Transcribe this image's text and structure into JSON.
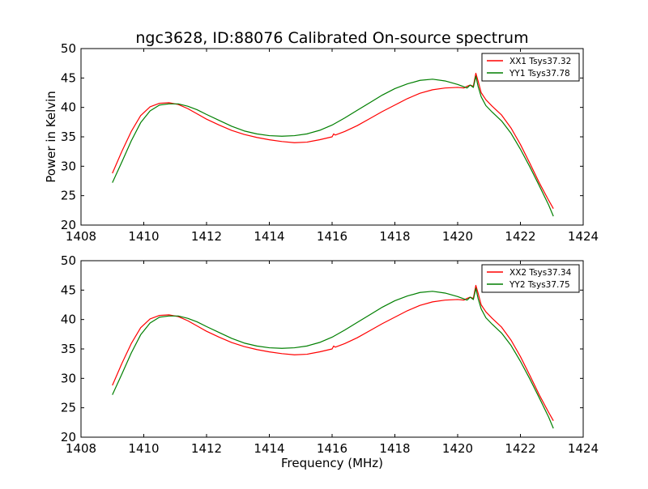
{
  "figure": {
    "title": "ngc3628, ID:88076 Calibrated On-source spectrum",
    "xlabel": "Frequency (MHz)",
    "ylabel": "Power in Kelvin"
  },
  "colors": {
    "xx": "#ff0000",
    "yy": "#007f00",
    "axes": "#000000"
  },
  "chart_data": [
    {
      "type": "line",
      "title": "ngc3628, ID:88076 Calibrated On-source spectrum",
      "xlabel": "",
      "ylabel": "Power in Kelvin",
      "xlim": [
        1408,
        1424
      ],
      "ylim": [
        20,
        50
      ],
      "xticks": [
        1408,
        1410,
        1412,
        1414,
        1416,
        1418,
        1420,
        1422,
        1424
      ],
      "yticks": [
        20,
        25,
        30,
        35,
        40,
        45,
        50
      ],
      "grid": false,
      "legend_position": "top-right",
      "series": [
        {
          "name": "XX1 Tsys37.32",
          "color": "#ff0000",
          "x": [
            1409.0,
            1409.3,
            1409.6,
            1409.9,
            1410.2,
            1410.5,
            1410.8,
            1411.1,
            1411.4,
            1411.7,
            1412.0,
            1412.4,
            1412.8,
            1413.2,
            1413.6,
            1414.0,
            1414.4,
            1414.8,
            1415.2,
            1415.6,
            1416.0,
            1416.05,
            1416.1,
            1416.4,
            1416.8,
            1417.2,
            1417.6,
            1418.0,
            1418.4,
            1418.8,
            1419.2,
            1419.6,
            1420.0,
            1420.2,
            1420.3,
            1420.4,
            1420.5,
            1420.58,
            1420.65,
            1420.75,
            1420.9,
            1421.1,
            1421.4,
            1421.7,
            1422.0,
            1422.3,
            1422.6,
            1422.9,
            1423.05
          ],
          "y": [
            28.8,
            32.5,
            35.9,
            38.6,
            40.1,
            40.7,
            40.8,
            40.5,
            39.8,
            38.9,
            38.0,
            37.0,
            36.1,
            35.4,
            34.9,
            34.5,
            34.2,
            34.0,
            34.1,
            34.5,
            35.0,
            35.5,
            35.3,
            35.9,
            36.9,
            38.1,
            39.3,
            40.4,
            41.5,
            42.4,
            43.0,
            43.3,
            43.4,
            43.3,
            43.6,
            43.8,
            43.6,
            45.8,
            44.5,
            42.5,
            41.3,
            40.2,
            38.7,
            36.5,
            33.7,
            30.5,
            27.2,
            24.2,
            22.8
          ]
        },
        {
          "name": "YY1 Tsys37.78",
          "color": "#007f00",
          "x": [
            1409.0,
            1409.3,
            1409.6,
            1409.9,
            1410.2,
            1410.5,
            1410.8,
            1411.1,
            1411.4,
            1411.7,
            1412.0,
            1412.4,
            1412.8,
            1413.2,
            1413.6,
            1414.0,
            1414.4,
            1414.8,
            1415.2,
            1415.6,
            1416.0,
            1416.4,
            1416.8,
            1417.2,
            1417.6,
            1418.0,
            1418.4,
            1418.8,
            1419.2,
            1419.6,
            1420.0,
            1420.2,
            1420.3,
            1420.4,
            1420.5,
            1420.58,
            1420.65,
            1420.75,
            1420.9,
            1421.1,
            1421.4,
            1421.7,
            1422.0,
            1422.3,
            1422.6,
            1422.9,
            1423.05
          ],
          "y": [
            27.2,
            30.7,
            34.3,
            37.4,
            39.4,
            40.4,
            40.6,
            40.6,
            40.2,
            39.6,
            38.8,
            37.8,
            36.8,
            36.0,
            35.5,
            35.2,
            35.1,
            35.2,
            35.5,
            36.1,
            37.0,
            38.2,
            39.5,
            40.8,
            42.1,
            43.2,
            44.0,
            44.6,
            44.8,
            44.5,
            43.9,
            43.5,
            43.3,
            43.8,
            43.4,
            45.3,
            43.6,
            41.8,
            40.3,
            39.2,
            37.7,
            35.6,
            32.9,
            29.9,
            26.7,
            23.4,
            21.5
          ]
        }
      ]
    },
    {
      "type": "line",
      "title": "",
      "xlabel": "Frequency (MHz)",
      "ylabel": "",
      "xlim": [
        1408,
        1424
      ],
      "ylim": [
        20,
        50
      ],
      "xticks": [
        1408,
        1410,
        1412,
        1414,
        1416,
        1418,
        1420,
        1422,
        1424
      ],
      "yticks": [
        20,
        25,
        30,
        35,
        40,
        45,
        50
      ],
      "grid": false,
      "legend_position": "top-right",
      "series": [
        {
          "name": "XX2 Tsys37.34",
          "color": "#ff0000",
          "x": [
            1409.0,
            1409.3,
            1409.6,
            1409.9,
            1410.2,
            1410.5,
            1410.8,
            1411.1,
            1411.4,
            1411.7,
            1412.0,
            1412.4,
            1412.8,
            1413.2,
            1413.6,
            1414.0,
            1414.4,
            1414.8,
            1415.2,
            1415.6,
            1416.0,
            1416.05,
            1416.1,
            1416.4,
            1416.8,
            1417.2,
            1417.6,
            1418.0,
            1418.4,
            1418.8,
            1419.2,
            1419.6,
            1420.0,
            1420.2,
            1420.3,
            1420.4,
            1420.5,
            1420.58,
            1420.65,
            1420.75,
            1420.9,
            1421.1,
            1421.4,
            1421.7,
            1422.0,
            1422.3,
            1422.6,
            1422.9,
            1423.05
          ],
          "y": [
            28.8,
            32.5,
            35.9,
            38.6,
            40.1,
            40.7,
            40.8,
            40.5,
            39.8,
            38.9,
            38.0,
            37.0,
            36.1,
            35.4,
            34.9,
            34.5,
            34.2,
            34.0,
            34.1,
            34.5,
            35.0,
            35.5,
            35.3,
            35.9,
            36.9,
            38.1,
            39.3,
            40.4,
            41.5,
            42.4,
            43.0,
            43.3,
            43.4,
            43.3,
            43.6,
            43.8,
            43.6,
            45.8,
            44.5,
            42.5,
            41.3,
            40.2,
            38.7,
            36.5,
            33.7,
            30.5,
            27.2,
            24.2,
            22.8
          ]
        },
        {
          "name": "YY2 Tsys37.75",
          "color": "#007f00",
          "x": [
            1409.0,
            1409.3,
            1409.6,
            1409.9,
            1410.2,
            1410.5,
            1410.8,
            1411.1,
            1411.4,
            1411.7,
            1412.0,
            1412.4,
            1412.8,
            1413.2,
            1413.6,
            1414.0,
            1414.4,
            1414.8,
            1415.2,
            1415.6,
            1416.0,
            1416.4,
            1416.8,
            1417.2,
            1417.6,
            1418.0,
            1418.4,
            1418.8,
            1419.2,
            1419.6,
            1420.0,
            1420.2,
            1420.3,
            1420.4,
            1420.5,
            1420.58,
            1420.65,
            1420.75,
            1420.9,
            1421.1,
            1421.4,
            1421.7,
            1422.0,
            1422.3,
            1422.6,
            1422.9,
            1423.05
          ],
          "y": [
            27.2,
            30.7,
            34.3,
            37.4,
            39.4,
            40.4,
            40.6,
            40.6,
            40.2,
            39.6,
            38.8,
            37.8,
            36.8,
            36.0,
            35.5,
            35.2,
            35.1,
            35.2,
            35.5,
            36.1,
            37.0,
            38.2,
            39.5,
            40.8,
            42.1,
            43.2,
            44.0,
            44.6,
            44.8,
            44.5,
            43.9,
            43.5,
            43.3,
            43.8,
            43.4,
            45.3,
            43.6,
            41.8,
            40.3,
            39.2,
            37.7,
            35.6,
            32.9,
            29.9,
            26.7,
            23.4,
            21.5
          ]
        }
      ]
    }
  ]
}
